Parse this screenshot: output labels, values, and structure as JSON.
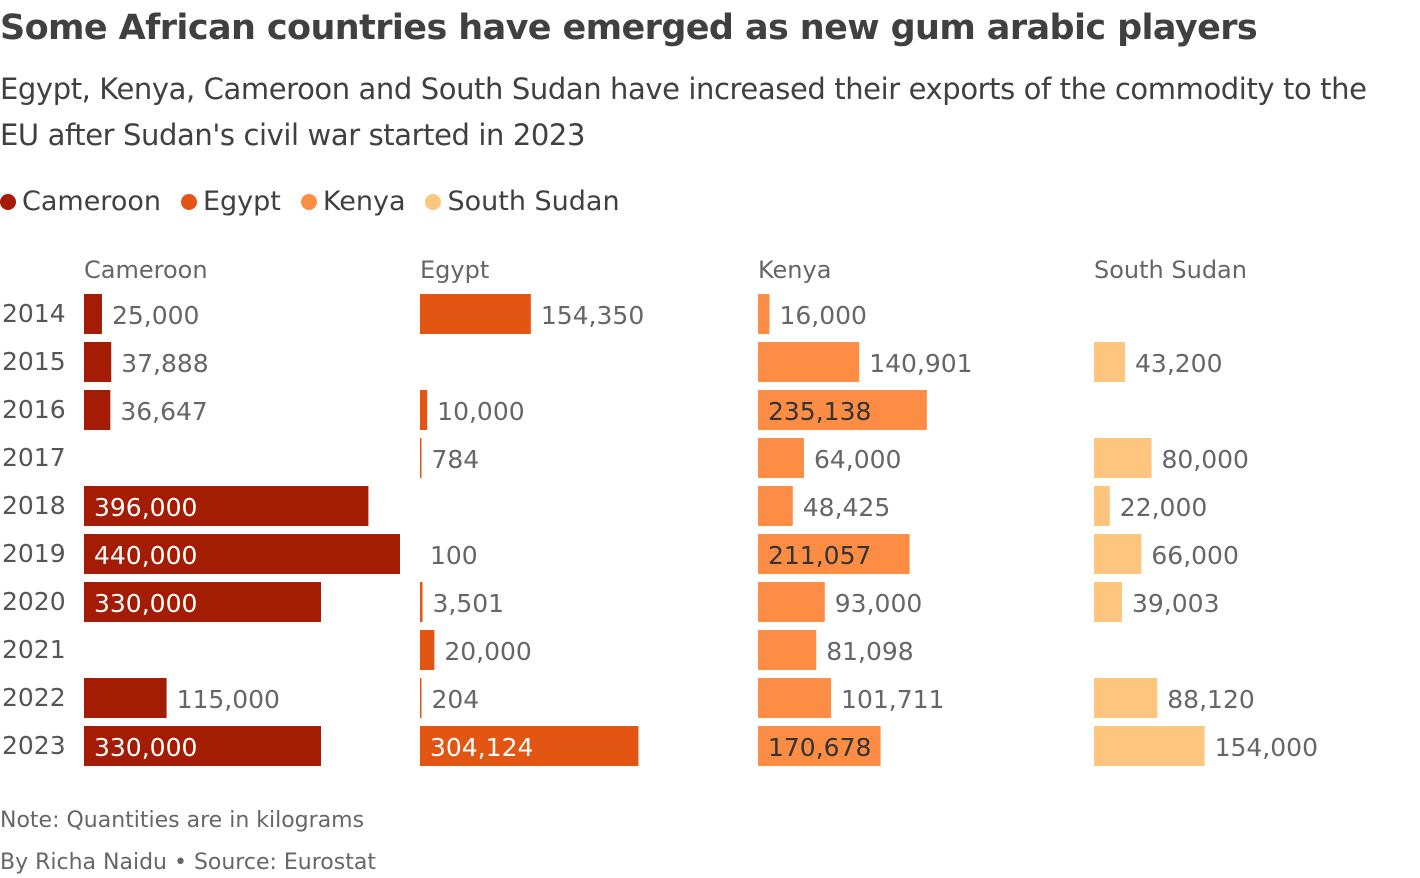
{
  "title": "Some African countries have emerged as new gum arabic players",
  "subtitle": "Egypt, Kenya, Cameroon and South Sudan have increased their exports of the commodity to the EU after Sudan's civil war started in 2023",
  "note": "Note: Quantities are in kilograms",
  "source": "By Richa Naidu • Source: Eurostat",
  "chart_data": {
    "type": "bar",
    "orientation": "horizontal",
    "layout": "small-multiples",
    "unit": "kilograms",
    "legend_position": "top-left",
    "grid": false,
    "categories": [
      "2014",
      "2015",
      "2016",
      "2017",
      "2018",
      "2019",
      "2020",
      "2021",
      "2022",
      "2023"
    ],
    "series": [
      {
        "name": "Cameroon",
        "color": "#a51c05",
        "label_inside_color": "#ffffff",
        "values": [
          25000,
          37888,
          36647,
          null,
          396000,
          440000,
          330000,
          null,
          115000,
          330000
        ]
      },
      {
        "name": "Egypt",
        "color": "#e35512",
        "label_inside_color": "#ffffff",
        "values": [
          154350,
          null,
          10000,
          784,
          null,
          100,
          3501,
          20000,
          204,
          304124
        ]
      },
      {
        "name": "Kenya",
        "color": "#fd8c45",
        "label_inside_color": "#333333",
        "values": [
          16000,
          140901,
          235138,
          64000,
          48425,
          211057,
          93000,
          81098,
          101711,
          170678
        ]
      },
      {
        "name": "South Sudan",
        "color": "#fec57e",
        "label_inside_color": "#333333",
        "values": [
          null,
          43200,
          null,
          80000,
          22000,
          66000,
          39003,
          null,
          88120,
          154000
        ]
      }
    ],
    "xlim": [
      0,
      440000
    ]
  }
}
